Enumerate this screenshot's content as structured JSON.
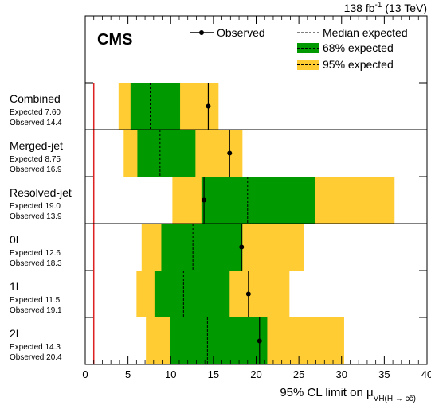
{
  "header": {
    "lumi_prefix": "138 fb",
    "lumi_exp": "-1",
    "lumi_suffix": " (13 TeV)"
  },
  "experiment_label": "CMS",
  "legend": {
    "observed": "Observed",
    "median": "Median expected",
    "band68": "68% expected",
    "band95": "95% expected"
  },
  "colors": {
    "band68": "#009900",
    "band95": "#ffcc33",
    "reference_line": "#dd2222",
    "marker": "#000000"
  },
  "x_axis": {
    "title": "95% CL limit on μ",
    "title_subscript": "VH(H → cc̄)"
  },
  "chart_data": {
    "type": "limit-band",
    "xlim": [
      0,
      40
    ],
    "xticks": [
      "0",
      "5",
      "10",
      "15",
      "20",
      "25",
      "30",
      "35",
      "40"
    ],
    "reference_line_x": 1,
    "categories": [
      {
        "name": "Combined",
        "expected_label": "Expected 7.60",
        "observed_label": "Observed 14.4",
        "expected": 7.6,
        "observed": 14.4,
        "band68": [
          5.3,
          11.1
        ],
        "band95": [
          3.9,
          15.6
        ]
      },
      {
        "name": "Merged-jet",
        "expected_label": "Expected 8.75",
        "observed_label": "Observed 16.9",
        "expected": 8.75,
        "observed": 16.9,
        "band68": [
          6.1,
          12.9
        ],
        "band95": [
          4.5,
          18.4
        ]
      },
      {
        "name": "Resolved-jet",
        "expected_label": "Expected 19.0",
        "observed_label": "Observed 13.9",
        "expected": 19.0,
        "observed": 13.9,
        "band68": [
          13.6,
          26.9
        ],
        "band95": [
          10.2,
          36.2
        ]
      },
      {
        "name": "0L",
        "expected_label": "Expected 12.6",
        "observed_label": "Observed 18.3",
        "expected": 12.6,
        "observed": 18.3,
        "band68": [
          8.9,
          18.4
        ],
        "band95": [
          6.6,
          25.6
        ]
      },
      {
        "name": "1L",
        "expected_label": "Expected 11.5",
        "observed_label": "Observed 19.1",
        "expected": 11.5,
        "observed": 19.1,
        "band68": [
          8.1,
          16.9
        ],
        "band95": [
          6.0,
          23.9
        ]
      },
      {
        "name": "2L",
        "expected_label": "Expected 14.3",
        "observed_label": "Observed 20.4",
        "expected": 14.3,
        "observed": 20.4,
        "band68": [
          9.9,
          21.3
        ],
        "band95": [
          7.1,
          30.3
        ]
      }
    ],
    "separators_after": [
      0,
      2
    ]
  }
}
